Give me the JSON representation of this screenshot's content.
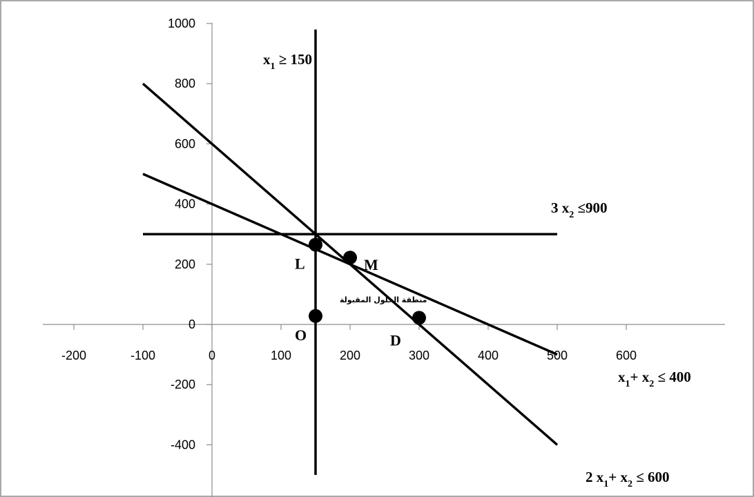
{
  "chart_data": {
    "type": "line",
    "title": "",
    "xlabel": "",
    "ylabel": "",
    "xlim": [
      -200,
      600
    ],
    "ylim": [
      -500,
      1000
    ],
    "grid": false,
    "x_ticks": [
      -200,
      -100,
      0,
      100,
      200,
      300,
      400,
      500,
      600
    ],
    "y_ticks": [
      -400,
      -200,
      0,
      200,
      400,
      600,
      800,
      1000
    ],
    "lines": [
      {
        "id": "c4",
        "label": "x",
        "sub": "1",
        "rest": "≥ 150",
        "from": [
          150,
          980
        ],
        "to": [
          150,
          -500
        ]
      },
      {
        "id": "c3",
        "label": "3 x",
        "sub": "2",
        "rest": "≤900",
        "from": [
          -100,
          300
        ],
        "to": [
          500,
          300
        ]
      },
      {
        "id": "c1",
        "label": "x",
        "sub": "1",
        "mid": "+ x",
        "sub2": "2",
        "rest": "≤ 400",
        "from": [
          -100,
          500
        ],
        "to": [
          500,
          -100
        ]
      },
      {
        "id": "c2",
        "label": "2 x",
        "sub": "1",
        "mid": "+ x",
        "sub2": "2",
        "rest": "≤ 600",
        "from": [
          -100,
          800
        ],
        "to": [
          500,
          -400
        ]
      }
    ],
    "points": [
      {
        "label": "L",
        "x": 150,
        "y": 265
      },
      {
        "label": "M",
        "x": 200,
        "y": 222
      },
      {
        "label": "O",
        "x": 150,
        "y": 28
      },
      {
        "label": "D",
        "x": 300,
        "y": 22
      }
    ],
    "annotation": "منطقة الحلول المقبولة"
  }
}
